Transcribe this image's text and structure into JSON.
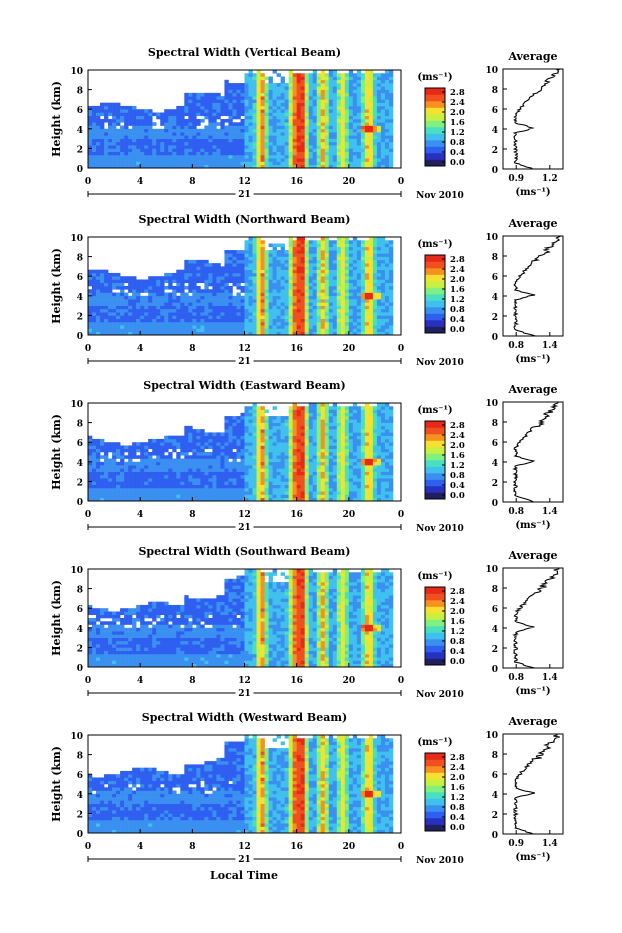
{
  "panels": [
    {
      "title": "Spectral Width (Vertical Beam)",
      "avg_ticks": [
        "0.9",
        "1.2"
      ],
      "avg_range": [
        0.75,
        1.35
      ]
    },
    {
      "title": "Spectral Width (Northward Beam)",
      "avg_ticks": [
        "0.8",
        "1.4"
      ],
      "avg_range": [
        0.7,
        1.5
      ]
    },
    {
      "title": "Spectral Width (Eastward Beam)",
      "avg_ticks": [
        "0.8",
        "1.4"
      ],
      "avg_range": [
        0.7,
        1.5
      ]
    },
    {
      "title": "Spectral Width (Southward Beam)",
      "avg_ticks": [
        "0.8",
        "1.4"
      ],
      "avg_range": [
        0.7,
        1.5
      ]
    },
    {
      "title": "Spectral Width (Westward Beam)",
      "avg_ticks": [
        "0.9",
        "1.4"
      ],
      "avg_range": [
        0.8,
        1.5
      ]
    }
  ],
  "common": {
    "ylabel": "Height (km)",
    "y_ticks": [
      "0",
      "2",
      "4",
      "6",
      "8",
      "10"
    ],
    "x_ticks": [
      "0",
      "4",
      "8",
      "12",
      "16",
      "20",
      "0"
    ],
    "day_label": "21",
    "month_label": "Nov 2010",
    "colorbar_unit": "(ms⁻¹)",
    "colorbar_ticks": [
      "2.8",
      "2.4",
      "2.0",
      "1.6",
      "1.2",
      "0.8",
      "0.4",
      "0.0"
    ],
    "avg_title": "Average",
    "avg_xlabel": "(ms⁻¹)",
    "avg_y_ticks": [
      "0",
      "2",
      "4",
      "6",
      "8",
      "10"
    ],
    "xlabel": "Local Time"
  },
  "colors": {
    "scale": [
      "#202060",
      "#2830c0",
      "#2f5ff0",
      "#3a90f0",
      "#40c0ee",
      "#48e0c0",
      "#80f080",
      "#c8f040",
      "#f8e030",
      "#f89020",
      "#f05020",
      "#e82818"
    ]
  },
  "chart_data": [
    {
      "type": "heatmap",
      "title": "Spectral Width (Vertical Beam)",
      "xlabel": "Local Time",
      "ylabel": "Height (km)",
      "xlim": [
        0,
        24
      ],
      "ylim": [
        0,
        10
      ],
      "color_range": [
        0.0,
        2.8
      ]
    },
    {
      "type": "heatmap",
      "title": "Spectral Width (Northward Beam)",
      "xlabel": "Local Time",
      "ylabel": "Height (km)",
      "xlim": [
        0,
        24
      ],
      "ylim": [
        0,
        10
      ],
      "color_range": [
        0.0,
        2.8
      ]
    },
    {
      "type": "heatmap",
      "title": "Spectral Width (Eastward Beam)",
      "xlabel": "Local Time",
      "ylabel": "Height (km)",
      "xlim": [
        0,
        24
      ],
      "ylim": [
        0,
        10
      ],
      "color_range": [
        0.0,
        2.8
      ]
    },
    {
      "type": "heatmap",
      "title": "Spectral Width (Southward Beam)",
      "xlabel": "Local Time",
      "ylabel": "Height (km)",
      "xlim": [
        0,
        24
      ],
      "ylim": [
        0,
        10
      ],
      "color_range": [
        0.0,
        2.8
      ]
    },
    {
      "type": "heatmap",
      "title": "Spectral Width (Westward Beam)",
      "xlabel": "Local Time",
      "ylabel": "Height (km)",
      "xlim": [
        0,
        24
      ],
      "ylim": [
        0,
        10
      ],
      "color_range": [
        0.0,
        2.8
      ]
    }
  ]
}
